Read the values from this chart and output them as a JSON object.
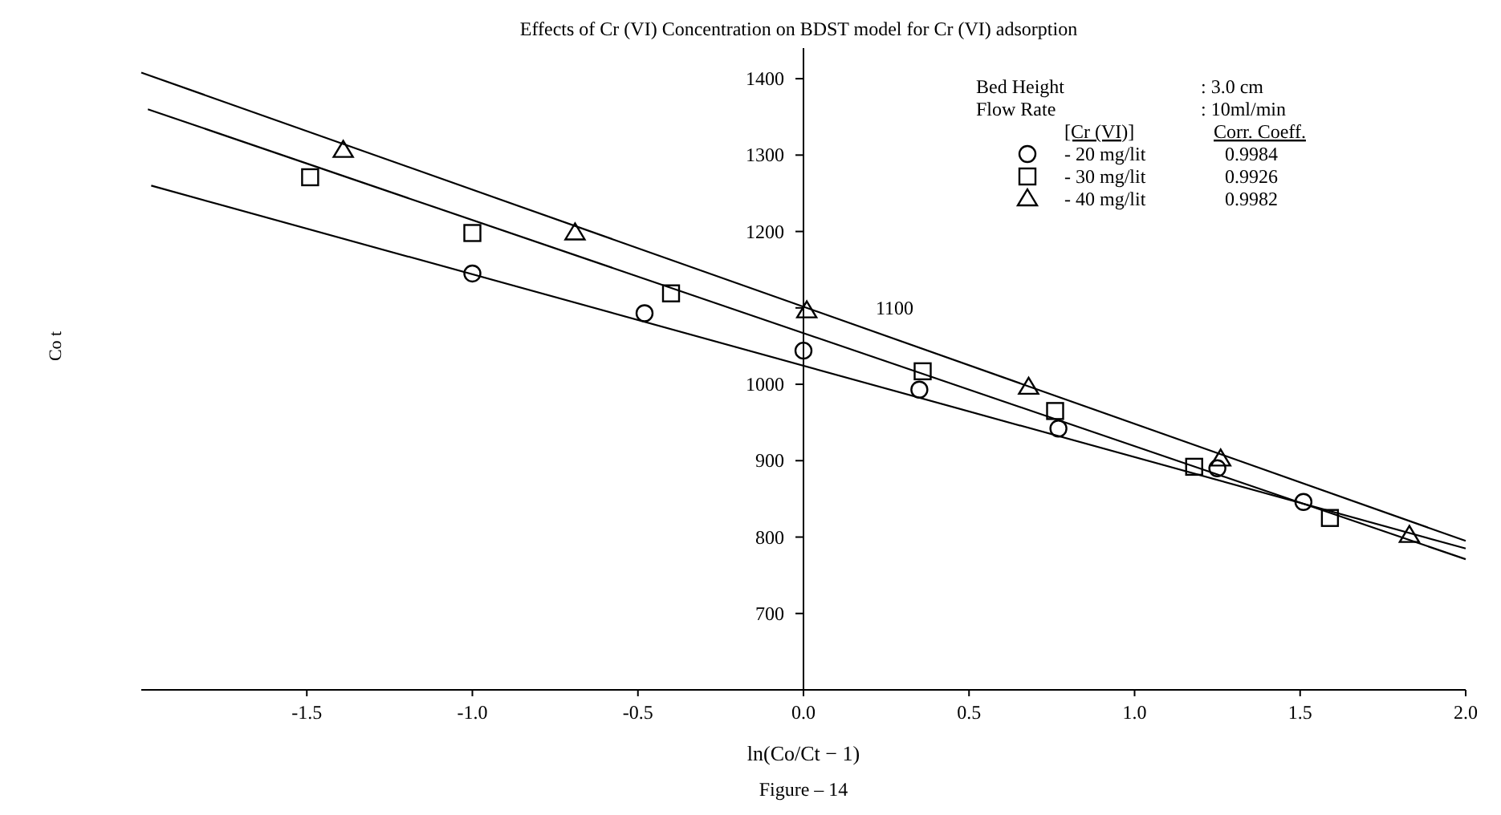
{
  "chart_data": {
    "type": "scatter",
    "title": "Effects of Cr (VI) Concentration on BDST model for Cr (VI) adsorption",
    "xlabel": "ln(Co/Ct − 1)",
    "ylabel": "Co t",
    "legend_title": "[Cr (VI)]",
    "legend": "top right",
    "grid": false,
    "xlim": [
      -2.0,
      2.0
    ],
    "ylim": [
      600,
      1440
    ],
    "xticks": [
      {
        "value": -1.5,
        "label": "-1.5"
      },
      {
        "value": -1.0,
        "label": "-1.0"
      },
      {
        "value": -0.5,
        "label": "-0.5"
      },
      {
        "value": 0,
        "label": "0.0"
      },
      {
        "value": 0.5,
        "label": "0.5"
      },
      {
        "value": 1,
        "label": "1.0"
      },
      {
        "value": 1.5,
        "label": "1.5"
      },
      {
        "value": 2,
        "label": "2.0"
      }
    ],
    "yticks": [
      700,
      800,
      900,
      1000,
      {
        "value": 1100,
        "label": null
      },
      1200,
      1300,
      1400
    ],
    "series": [
      {
        "name": "- 20 mg/lit",
        "color": "#000000",
        "marker": "circle",
        "x": [
          -1.0,
          -0.48,
          0.0,
          0.35,
          0.77,
          1.25,
          1.51
        ],
        "values": [
          1145,
          1093,
          1044,
          993,
          942,
          890,
          846
        ]
      },
      {
        "name": "- 30 mg/lit",
        "color": "#000000",
        "marker": "square",
        "x": [
          -1.49,
          -1.0,
          -0.4,
          0.36,
          0.76,
          1.18,
          1.59
        ],
        "values": [
          1271,
          1198,
          1119,
          1017,
          965,
          892,
          825
        ]
      },
      {
        "name": "- 40 mg/lit",
        "color": "#000000",
        "marker": "triangle",
        "x": [
          -1.39,
          -0.69,
          0.01,
          0.68,
          1.26,
          1.83
        ],
        "values": [
          1306,
          1198,
          1096,
          996,
          902,
          802
        ]
      },
      {
        "type": "line",
        "color": "#000000",
        "marker": "none",
        "x": [
          -1.97,
          2.0
        ],
        "values": [
          1260,
          785
        ]
      },
      {
        "type": "line",
        "color": "#000000",
        "marker": "none",
        "x": [
          -1.98,
          2.0
        ],
        "values": [
          1360,
          771
        ]
      },
      {
        "type": "line",
        "color": "#000000",
        "marker": "none",
        "x": [
          -2.0,
          2.0
        ],
        "values": [
          1408,
          795
        ]
      }
    ],
    "annotations": [
      "Bed Height",
      ": 3.0 cm",
      "Flow Rate",
      ": 10ml/min",
      "Corr. Coeff.",
      "0.9984",
      "0.9926",
      "0.9982",
      "1100",
      "Figure – 14"
    ]
  }
}
